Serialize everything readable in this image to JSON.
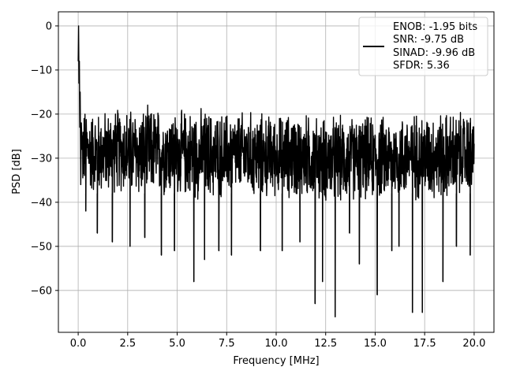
{
  "chart_data": {
    "type": "line",
    "title": "",
    "xlabel": "Frequency [MHz]",
    "ylabel": "PSD [dB]",
    "xlim": [
      -1,
      21
    ],
    "ylim": [
      -69.5,
      3.2
    ],
    "xticks": [
      0.0,
      2.5,
      5.0,
      7.5,
      10.0,
      12.5,
      15.0,
      17.5,
      20.0
    ],
    "xtick_labels": [
      "0.0",
      "2.5",
      "5.0",
      "7.5",
      "10.0",
      "12.5",
      "15.0",
      "17.5",
      "20.0"
    ],
    "yticks": [
      0,
      -10,
      -20,
      -30,
      -40,
      -50,
      -60
    ],
    "ytick_labels": [
      "0",
      "−10",
      "−20",
      "−30",
      "−40",
      "−50",
      "−60"
    ],
    "grid": true,
    "legend_position": "upper-right",
    "legend_lines": [
      "ENOB: -1.95 bits",
      "SNR: -9.75 dB",
      "SINAD: -9.96 dB",
      "SFDR: 5.36"
    ],
    "line_color": "#000000",
    "series": [
      {
        "name": "ENOB: -1.95 bits",
        "x": [
          0.0,
          0.02,
          0.04,
          0.06,
          0.08,
          0.1,
          0.13,
          0.16,
          0.2,
          0.25,
          0.3,
          0.4,
          0.5,
          0.6,
          0.7,
          0.8,
          1.0,
          1.2,
          1.4,
          1.6,
          1.8,
          2.0,
          2.5,
          3.0,
          3.5,
          4.0,
          4.5,
          5.0,
          5.5,
          6.0,
          6.5,
          7.0,
          7.5,
          8.0,
          8.5,
          9.0,
          9.5,
          10.0,
          10.5,
          11.0,
          11.5,
          12.0,
          12.5,
          13.0,
          13.5,
          14.0,
          14.5,
          15.0,
          15.5,
          16.0,
          16.5,
          17.0,
          17.5,
          18.0,
          18.5,
          19.0,
          19.5,
          20.0
        ],
        "y": [
          -8,
          0,
          -13,
          -8,
          -23,
          -15,
          -36,
          -22,
          -28,
          -31,
          -30,
          -32,
          -29,
          -33,
          -31,
          -30,
          -31,
          -32,
          -30,
          -31,
          -29,
          -30,
          -31,
          -30,
          -31,
          -30,
          -30,
          -31,
          -30,
          -29,
          -31,
          -30,
          -31,
          -30,
          -30,
          -31,
          -30,
          -31,
          -30,
          -31,
          -30,
          -31,
          -30,
          -31,
          -30,
          -31,
          -30,
          -31,
          -30,
          -31,
          -30,
          -31,
          -30,
          -31,
          -30,
          -30,
          -31,
          -30
        ]
      }
    ],
    "noise_band": {
      "x": [
        0.2,
        1.0,
        2.0,
        3.0,
        4.0,
        5.0,
        6.0,
        7.0,
        8.0,
        9.0,
        10.0,
        11.0,
        12.0,
        13.0,
        14.0,
        15.0,
        16.0,
        17.0,
        18.0,
        19.0,
        20.0
      ],
      "upper": [
        -19,
        -20,
        -19,
        -19,
        -19,
        -20,
        -19,
        -20,
        -20,
        -20,
        -21,
        -20,
        -21,
        -21,
        -21,
        -21,
        -21,
        -20,
        -20,
        -20,
        -20
      ],
      "lower": [
        -40,
        -41,
        -40,
        -42,
        -41,
        -41,
        -42,
        -42,
        -41,
        -42,
        -41,
        -42,
        -42,
        -43,
        -42,
        -42,
        -42,
        -42,
        -42,
        -42,
        -40
      ]
    },
    "deep_nulls": [
      {
        "x": 0.38,
        "y": -42
      },
      {
        "x": 0.96,
        "y": -47
      },
      {
        "x": 1.72,
        "y": -49
      },
      {
        "x": 2.62,
        "y": -50
      },
      {
        "x": 3.36,
        "y": -48
      },
      {
        "x": 4.2,
        "y": -52
      },
      {
        "x": 4.86,
        "y": -51
      },
      {
        "x": 5.84,
        "y": -58
      },
      {
        "x": 6.38,
        "y": -53
      },
      {
        "x": 7.1,
        "y": -51
      },
      {
        "x": 7.74,
        "y": -52
      },
      {
        "x": 9.2,
        "y": -51
      },
      {
        "x": 10.3,
        "y": -51
      },
      {
        "x": 11.2,
        "y": -49
      },
      {
        "x": 11.96,
        "y": -63
      },
      {
        "x": 12.34,
        "y": -58
      },
      {
        "x": 12.98,
        "y": -66
      },
      {
        "x": 13.7,
        "y": -47
      },
      {
        "x": 14.2,
        "y": -54
      },
      {
        "x": 15.1,
        "y": -61
      },
      {
        "x": 15.84,
        "y": -51
      },
      {
        "x": 16.2,
        "y": -50
      },
      {
        "x": 16.88,
        "y": -65
      },
      {
        "x": 17.38,
        "y": -65
      },
      {
        "x": 18.42,
        "y": -58
      },
      {
        "x": 19.1,
        "y": -50
      },
      {
        "x": 19.8,
        "y": -52
      }
    ]
  }
}
